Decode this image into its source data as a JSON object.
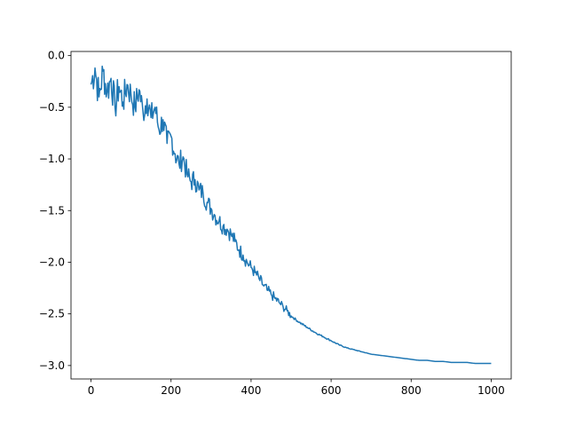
{
  "chart_data": {
    "type": "line",
    "title": "",
    "xlabel": "",
    "ylabel": "",
    "xlim": [
      -50,
      1050
    ],
    "ylim": [
      -3.13,
      0.04
    ],
    "x_ticks": [
      0,
      200,
      400,
      600,
      800,
      1000
    ],
    "x_tick_labels": [
      "0",
      "200",
      "400",
      "600",
      "800",
      "1000"
    ],
    "y_ticks": [
      0.0,
      -0.5,
      -1.0,
      -1.5,
      -2.0,
      -2.5,
      -3.0
    ],
    "y_tick_labels": [
      "0.0",
      "−0.5",
      "−1.0",
      "−1.5",
      "−2.0",
      "−2.5",
      "−3.0"
    ],
    "grid": false,
    "series": [
      {
        "color": "#1f77b4",
        "x": [
          0,
          10,
          20,
          30,
          40,
          50,
          60,
          70,
          80,
          90,
          100,
          110,
          120,
          130,
          140,
          150,
          160,
          170,
          180,
          190,
          200,
          210,
          220,
          230,
          240,
          250,
          260,
          270,
          280,
          290,
          300,
          310,
          320,
          330,
          340,
          350,
          360,
          370,
          380,
          390,
          400,
          410,
          420,
          430,
          440,
          450,
          460,
          470,
          480,
          490,
          500,
          520,
          540,
          560,
          580,
          600,
          620,
          640,
          660,
          680,
          700,
          720,
          740,
          760,
          780,
          800,
          820,
          840,
          860,
          880,
          900,
          920,
          940,
          960,
          980,
          1000
        ],
        "y": [
          -0.28,
          -0.12,
          -0.4,
          -0.15,
          -0.35,
          -0.22,
          -0.5,
          -0.3,
          -0.45,
          -0.28,
          -0.38,
          -0.5,
          -0.33,
          -0.55,
          -0.42,
          -0.6,
          -0.5,
          -0.72,
          -0.62,
          -0.85,
          -0.78,
          -0.95,
          -1.05,
          -0.98,
          -1.15,
          -1.22,
          -1.2,
          -1.3,
          -1.33,
          -1.42,
          -1.48,
          -1.55,
          -1.6,
          -1.65,
          -1.68,
          -1.73,
          -1.8,
          -1.88,
          -1.93,
          -2.0,
          -2.05,
          -2.1,
          -2.16,
          -2.22,
          -2.27,
          -2.31,
          -2.35,
          -2.39,
          -2.43,
          -2.47,
          -2.52,
          -2.58,
          -2.63,
          -2.68,
          -2.72,
          -2.76,
          -2.8,
          -2.83,
          -2.85,
          -2.87,
          -2.89,
          -2.9,
          -2.91,
          -2.92,
          -2.93,
          -2.94,
          -2.95,
          -2.95,
          -2.96,
          -2.96,
          -2.97,
          -2.97,
          -2.97,
          -2.98,
          -2.98,
          -2.98
        ]
      }
    ]
  }
}
